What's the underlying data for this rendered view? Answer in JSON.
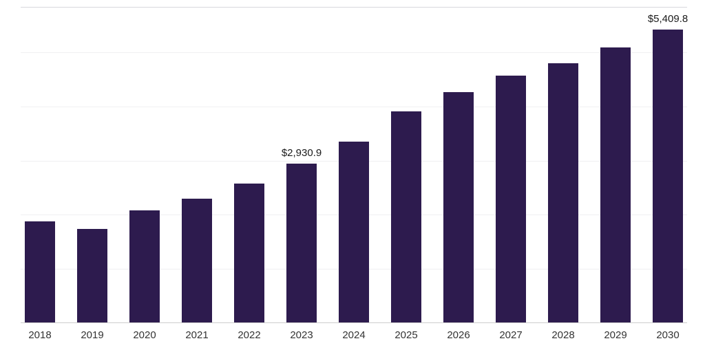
{
  "chart_data": {
    "type": "bar",
    "title": "",
    "xlabel": "",
    "ylabel": "",
    "categories": [
      "2018",
      "2019",
      "2020",
      "2021",
      "2022",
      "2023",
      "2024",
      "2025",
      "2026",
      "2027",
      "2028",
      "2029",
      "2030"
    ],
    "values": [
      1870,
      1730,
      2070,
      2290,
      2570,
      2930.9,
      3340,
      3900,
      4250,
      4560,
      4790,
      5080,
      5409.8
    ],
    "data_labels": [
      "",
      "",
      "",
      "",
      "",
      "$2,930.9",
      "",
      "",
      "",
      "",
      "",
      "",
      ""
    ],
    "ylim": [
      0,
      5840
    ],
    "gridline_values": [
      1000,
      2000,
      3000,
      4000,
      5000
    ],
    "grid": true,
    "legend_position": "none",
    "bar_color": "#2d1b4e",
    "label_2030": "$5,409.8"
  },
  "colors": {
    "bar": "#2d1b4e",
    "gridline": "#f0f0f2",
    "top_border": "#d8d8dc",
    "axis_line": "#cccccc",
    "axis_text": "#333333",
    "data_label_text": "#1a1a1a",
    "background": "#ffffff"
  }
}
